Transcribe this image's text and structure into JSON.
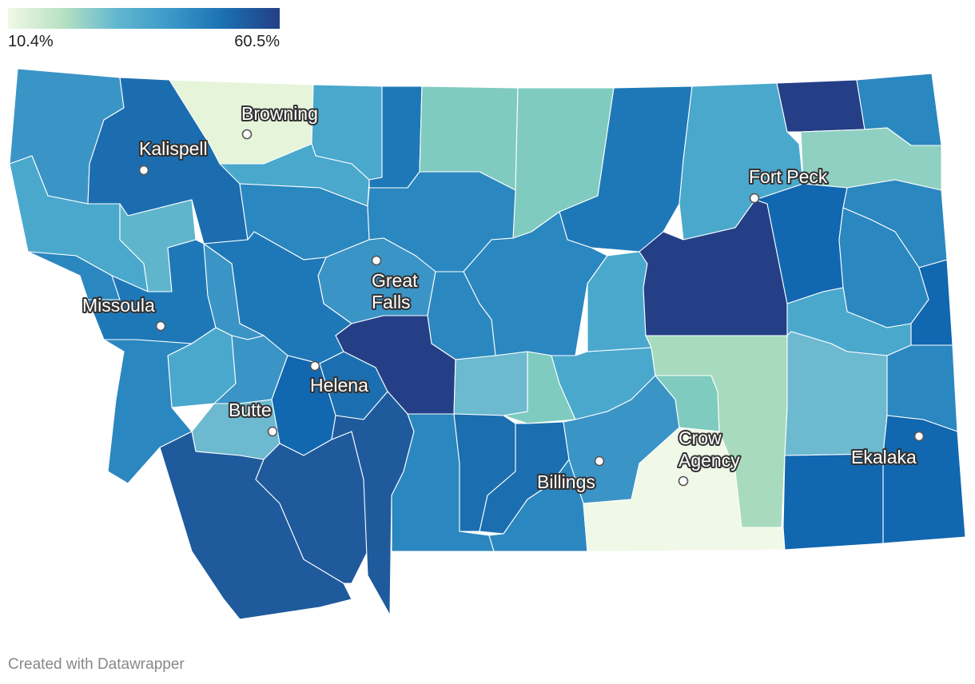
{
  "legend": {
    "min_label": "10.4%",
    "max_label": "60.5%",
    "color_stops": [
      "#f1f9e6",
      "#cdebc5",
      "#7fcbbf",
      "#4aa8cd",
      "#2b87bf",
      "#1865a8",
      "#243f86"
    ]
  },
  "cities": [
    {
      "name": "Browning"
    },
    {
      "name": "Kalispell"
    },
    {
      "name": "Fort Peck"
    },
    {
      "name": "Great"
    },
    {
      "name": "Falls"
    },
    {
      "name": "Missoula"
    },
    {
      "name": "Helena"
    },
    {
      "name": "Butte"
    },
    {
      "name": "Crow"
    },
    {
      "name": "Agency"
    },
    {
      "name": "Billings"
    },
    {
      "name": "Ekalaka"
    }
  ],
  "credit": "Created with Datawrapper"
}
